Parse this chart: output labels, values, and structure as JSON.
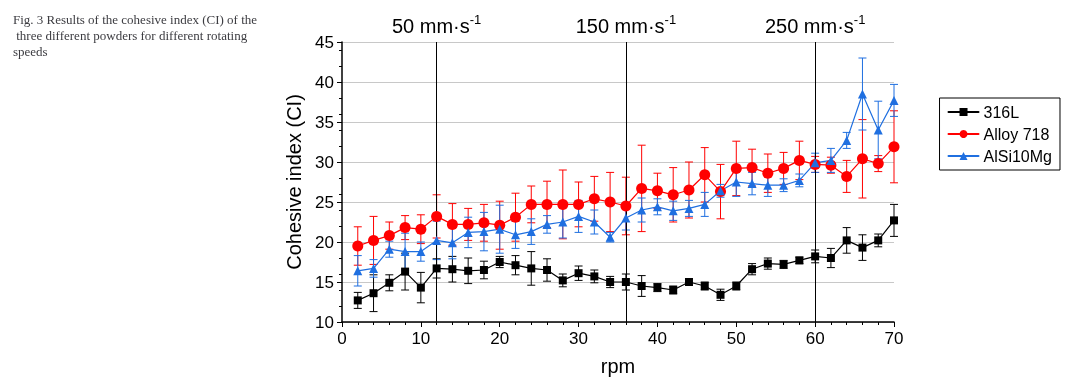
{
  "chart_data": {
    "type": "line",
    "title": "Fig. 3 Results of the cohesive index (CI) of the three different powders for different rotating speeds",
    "xlabel": "rpm",
    "ylabel": "Cohesive index (CI)",
    "x": [
      2,
      4,
      6,
      8,
      10,
      12,
      14,
      16,
      18,
      20,
      22,
      24,
      26,
      28,
      30,
      32,
      34,
      36,
      38,
      40,
      42,
      44,
      46,
      48,
      50,
      52,
      54,
      56,
      58,
      60,
      62,
      64,
      66,
      68,
      70
    ],
    "series": [
      {
        "name": "316L",
        "color": "#000000",
        "marker": "square",
        "values": [
          12.7,
          13.6,
          14.9,
          16.3,
          14.3,
          16.7,
          16.6,
          16.4,
          16.5,
          17.5,
          17.1,
          16.7,
          16.5,
          15.2,
          16.1,
          15.7,
          15.0,
          15.0,
          14.5,
          14.3,
          14.0,
          15.0,
          14.5,
          13.4,
          14.5,
          16.6,
          17.3,
          17.2,
          17.7,
          18.2,
          18.0,
          20.2,
          19.3,
          20.2,
          22.7
        ],
        "errors": [
          1.0,
          2.3,
          1.0,
          2.3,
          1.9,
          1.2,
          1.6,
          1.6,
          1.1,
          0.7,
          1.2,
          2.1,
          1.4,
          0.8,
          0.9,
          0.8,
          0.7,
          1.0,
          1.3,
          0.5,
          0.5,
          0.4,
          0.5,
          0.7,
          0.5,
          0.7,
          0.7,
          0.5,
          0.4,
          0.8,
          1.2,
          1.6,
          1.6,
          0.8,
          2.0
        ]
      },
      {
        "name": "Alloy 718",
        "color": "#ff0000",
        "marker": "circle",
        "values": [
          19.5,
          20.2,
          20.8,
          21.8,
          21.6,
          23.2,
          22.2,
          22.2,
          22.4,
          22.1,
          23.1,
          24.7,
          24.7,
          24.7,
          24.7,
          25.4,
          25.0,
          24.5,
          26.7,
          26.4,
          25.9,
          26.5,
          28.4,
          26.3,
          29.2,
          29.3,
          28.6,
          29.2,
          30.2,
          29.7,
          29.6,
          28.2,
          30.4,
          29.8,
          31.9
        ],
        "errors": [
          2.4,
          3.0,
          1.7,
          1.5,
          1.8,
          2.7,
          2.6,
          2.0,
          2.3,
          3.0,
          3.0,
          2.3,
          2.9,
          4.3,
          2.8,
          2.8,
          3.7,
          3.6,
          5.4,
          2.2,
          3.4,
          3.5,
          3.4,
          3.4,
          3.4,
          2.3,
          2.4,
          2.0,
          2.4,
          1.0,
          1.0,
          2.0,
          4.9,
          1.0,
          4.5
        ]
      },
      {
        "name": "AlSi10Mg",
        "color": "#1f6fe0",
        "marker": "triangle",
        "values": [
          16.4,
          16.7,
          19.1,
          18.8,
          18.8,
          20.2,
          19.9,
          21.2,
          21.3,
          21.6,
          20.9,
          21.3,
          22.2,
          22.5,
          23.2,
          22.5,
          20.6,
          23.0,
          24.0,
          24.4,
          23.9,
          24.2,
          24.7,
          26.4,
          27.5,
          27.3,
          27.1,
          27.1,
          27.7,
          29.9,
          30.2,
          32.7,
          38.5,
          34.0,
          37.7
        ],
        "errors": [
          1.9,
          1.1,
          1.0,
          2.3,
          1.2,
          2.4,
          2.0,
          1.9,
          2.4,
          3.0,
          1.7,
          1.6,
          1.1,
          2.0,
          2.0,
          1.5,
          0.6,
          1.5,
          1.5,
          1.0,
          1.2,
          1.0,
          1.5,
          0.8,
          1.8,
          1.4,
          1.4,
          0.8,
          0.8,
          1.2,
          1.5,
          1.0,
          4.5,
          3.6,
          2.0
        ]
      }
    ],
    "xlim": [
      0,
      70
    ],
    "xticks": [
      0,
      10,
      20,
      30,
      40,
      50,
      60,
      70
    ],
    "ylim": [
      10,
      45
    ],
    "yticks": [
      10,
      15,
      20,
      25,
      30,
      35,
      40,
      45
    ],
    "ref_lines": [
      {
        "axis": "x",
        "value": 12,
        "label": "50 mm·s$^{-1}$",
        "color": "#000000"
      },
      {
        "axis": "x",
        "value": 36,
        "label": "150 mm·s$^{-1}$",
        "color": "#000000"
      },
      {
        "axis": "x",
        "value": 60,
        "label": "250 mm·s$^{-1}$",
        "color": "#000000"
      }
    ],
    "grid": "y",
    "legend": "top right",
    "line_style": "solid"
  }
}
